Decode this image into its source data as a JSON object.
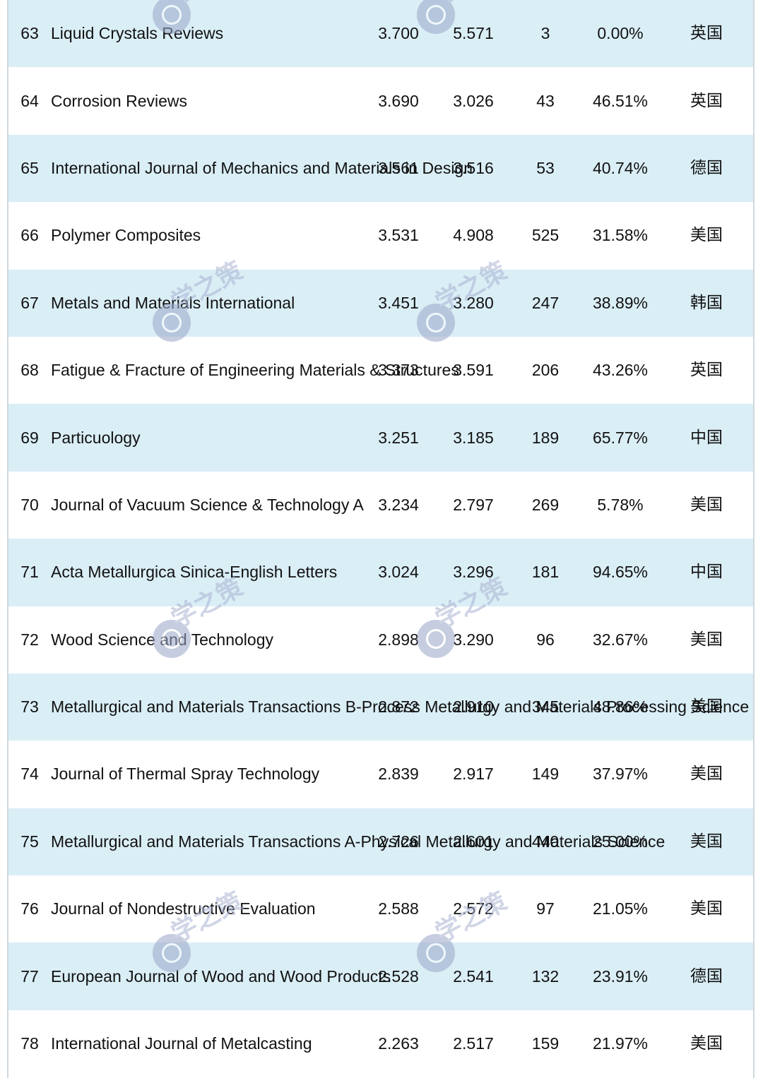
{
  "rows": [
    {
      "rank": "63",
      "name": "Liquid Crystals Reviews",
      "v1": "3.700",
      "v2": "5.571",
      "count": "3",
      "pct": "0.00%",
      "country": "英国"
    },
    {
      "rank": "64",
      "name": "Corrosion Reviews",
      "v1": "3.690",
      "v2": "3.026",
      "count": "43",
      "pct": "46.51%",
      "country": "英国"
    },
    {
      "rank": "65",
      "name": "International Journal of Mechanics and Materials in Design",
      "v1": "3.561",
      "v2": "3.516",
      "count": "53",
      "pct": "40.74%",
      "country": "德国"
    },
    {
      "rank": "66",
      "name": "Polymer Composites",
      "v1": "3.531",
      "v2": "4.908",
      "count": "525",
      "pct": "31.58%",
      "country": "美国"
    },
    {
      "rank": "67",
      "name": "Metals and Materials International",
      "v1": "3.451",
      "v2": "3.280",
      "count": "247",
      "pct": "38.89%",
      "country": "韩国"
    },
    {
      "rank": "68",
      "name": "Fatigue & Fracture of Engineering Materials & Structures",
      "v1": "3.373",
      "v2": "3.591",
      "count": "206",
      "pct": "43.26%",
      "country": "英国"
    },
    {
      "rank": "69",
      "name": "Particuology",
      "v1": "3.251",
      "v2": "3.185",
      "count": "189",
      "pct": "65.77%",
      "country": "中国"
    },
    {
      "rank": "70",
      "name": "Journal of Vacuum Science & Technology A",
      "v1": "3.234",
      "v2": "2.797",
      "count": "269",
      "pct": "5.78%",
      "country": "美国"
    },
    {
      "rank": "71",
      "name": "Acta Metallurgica Sinica-English Letters",
      "v1": "3.024",
      "v2": "3.296",
      "count": "181",
      "pct": "94.65%",
      "country": "中国"
    },
    {
      "rank": "72",
      "name": "Wood Science and Technology",
      "v1": "2.898",
      "v2": "3.290",
      "count": "96",
      "pct": "32.67%",
      "country": "美国"
    },
    {
      "rank": "73",
      "name": "Metallurgical and Materials Transactions B-Process Metallurgy and Materials Processing Science",
      "v1": "2.872",
      "v2": "2.910",
      "count": "345",
      "pct": "48.86%",
      "country": "美国"
    },
    {
      "rank": "74",
      "name": "Journal of Thermal Spray Technology",
      "v1": "2.839",
      "v2": "2.917",
      "count": "149",
      "pct": "37.97%",
      "country": "美国"
    },
    {
      "rank": "75",
      "name": "Metallurgical and Materials Transactions A-Physical Metallurgy and Materials Science",
      "v1": "2.726",
      "v2": "2.601",
      "count": "440",
      "pct": "25.00%",
      "country": "美国"
    },
    {
      "rank": "76",
      "name": "Journal of Nondestructive Evaluation",
      "v1": "2.588",
      "v2": "2.572",
      "count": "97",
      "pct": "21.05%",
      "country": "美国"
    },
    {
      "rank": "77",
      "name": "European Journal of Wood and Wood Products",
      "v1": "2.528",
      "v2": "2.541",
      "count": "132",
      "pct": "23.91%",
      "country": "德国"
    },
    {
      "rank": "78",
      "name": "International Journal of Metalcasting",
      "v1": "2.263",
      "v2": "2.517",
      "count": "159",
      "pct": "21.97%",
      "country": "美国"
    }
  ],
  "watermark": {
    "text": "学之策"
  },
  "colors": {
    "row_shade": "#daeef6",
    "text": "#111111",
    "watermark": "#aab3d3"
  }
}
